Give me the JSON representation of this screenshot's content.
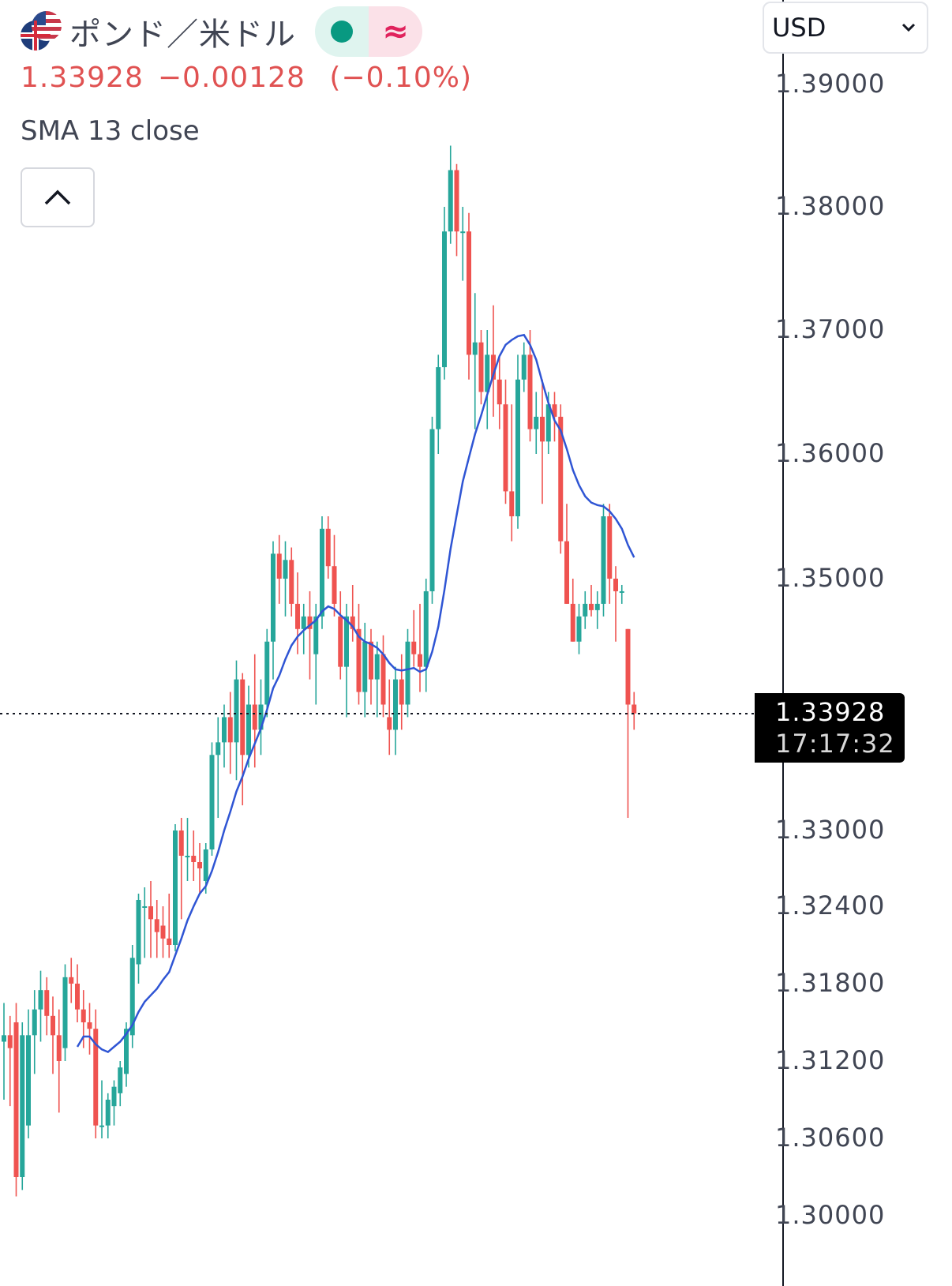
{
  "header": {
    "symbol_name": "ポンド／米ドル",
    "flag_icon": "gbp-usd-flags-icon",
    "status_icon": "market-open-dot-icon",
    "status_color": "#089981",
    "approx_icon": "approx-data-icon",
    "approx_symbol": "≈",
    "last_price": "1.33928",
    "change": "−0.00128",
    "change_pct": "(−0.10%)",
    "change_color": "#e05252"
  },
  "indicator": {
    "label": "SMA 13 close",
    "color": "#2f55d4"
  },
  "controls": {
    "collapse_icon": "chevron-up-icon",
    "currency": "USD",
    "currency_icon": "chevron-down-icon"
  },
  "price_tag": {
    "price": "1.33928",
    "time": "17:17:32"
  },
  "chart_data": {
    "type": "candlestick",
    "y_axis_side": "right",
    "y_tick_labels": [
      "1.39000",
      "1.38000",
      "1.37000",
      "1.36000",
      "1.35000",
      "1.33000",
      "1.32400",
      "1.31800",
      "1.31200",
      "1.30600",
      "1.30000"
    ],
    "y_tick_values": [
      1.39,
      1.38,
      1.37,
      1.36,
      1.35,
      1.33,
      1.324,
      1.318,
      1.312,
      1.306,
      1.3
    ],
    "colors": {
      "up": "#26a69a",
      "down": "#ef5350",
      "sma": "#2f55d4"
    },
    "last_price_value": 1.33928,
    "candles": [
      [
        1.3135,
        1.3165,
        1.309,
        1.314
      ],
      [
        1.314,
        1.3155,
        1.3085,
        1.313
      ],
      [
        1.315,
        1.3165,
        1.3015,
        1.303
      ],
      [
        1.303,
        1.315,
        1.302,
        1.314
      ],
      [
        1.307,
        1.316,
        1.306,
        1.314
      ],
      [
        1.314,
        1.3175,
        1.311,
        1.316
      ],
      [
        1.316,
        1.319,
        1.3135,
        1.3175
      ],
      [
        1.3175,
        1.3185,
        1.314,
        1.3155
      ],
      [
        1.3155,
        1.317,
        1.311,
        1.314
      ],
      [
        1.314,
        1.316,
        1.308,
        1.312
      ],
      [
        1.313,
        1.3195,
        1.312,
        1.3185
      ],
      [
        1.3185,
        1.32,
        1.3165,
        1.318
      ],
      [
        1.318,
        1.3195,
        1.315,
        1.316
      ],
      [
        1.316,
        1.3175,
        1.313,
        1.315
      ],
      [
        1.315,
        1.3165,
        1.3125,
        1.3145
      ],
      [
        1.3145,
        1.316,
        1.306,
        1.307
      ],
      [
        1.307,
        1.3105,
        1.306,
        1.307
      ],
      [
        1.307,
        1.3095,
        1.306,
        1.309
      ],
      [
        1.3085,
        1.3105,
        1.307,
        1.31
      ],
      [
        1.3095,
        1.312,
        1.3085,
        1.3115
      ],
      [
        1.311,
        1.315,
        1.31,
        1.3145
      ],
      [
        1.314,
        1.321,
        1.313,
        1.32
      ],
      [
        1.3195,
        1.325,
        1.318,
        1.3245
      ],
      [
        1.324,
        1.3255,
        1.32,
        1.324
      ],
      [
        1.324,
        1.326,
        1.32,
        1.323
      ],
      [
        1.323,
        1.3245,
        1.32,
        1.322
      ],
      [
        1.3225,
        1.324,
        1.32,
        1.3215
      ],
      [
        1.3215,
        1.325,
        1.32,
        1.321
      ],
      [
        1.321,
        1.3305,
        1.3205,
        1.33
      ],
      [
        1.33,
        1.331,
        1.323,
        1.328
      ],
      [
        1.328,
        1.331,
        1.326,
        1.328
      ],
      [
        1.328,
        1.33,
        1.326,
        1.3275
      ],
      [
        1.3275,
        1.329,
        1.325,
        1.327
      ],
      [
        1.326,
        1.329,
        1.325,
        1.3285
      ],
      [
        1.3285,
        1.337,
        1.328,
        1.336
      ],
      [
        1.336,
        1.339,
        1.331,
        1.337
      ],
      [
        1.337,
        1.34,
        1.335,
        1.339
      ],
      [
        1.339,
        1.341,
        1.3345,
        1.337
      ],
      [
        1.337,
        1.3435,
        1.334,
        1.342
      ],
      [
        1.342,
        1.3425,
        1.332,
        1.336
      ],
      [
        1.336,
        1.3415,
        1.335,
        1.34
      ],
      [
        1.34,
        1.344,
        1.335,
        1.338
      ],
      [
        1.338,
        1.342,
        1.336,
        1.34
      ],
      [
        1.34,
        1.346,
        1.339,
        1.345
      ],
      [
        1.345,
        1.353,
        1.342,
        1.352
      ],
      [
        1.352,
        1.3535,
        1.348,
        1.35
      ],
      [
        1.35,
        1.353,
        1.347,
        1.3515
      ],
      [
        1.3515,
        1.3525,
        1.347,
        1.348
      ],
      [
        1.348,
        1.3505,
        1.344,
        1.346
      ],
      [
        1.346,
        1.348,
        1.344,
        1.347
      ],
      [
        1.347,
        1.349,
        1.342,
        1.346
      ],
      [
        1.344,
        1.348,
        1.34,
        1.347
      ],
      [
        1.347,
        1.355,
        1.346,
        1.354
      ],
      [
        1.354,
        1.355,
        1.35,
        1.351
      ],
      [
        1.351,
        1.3535,
        1.347,
        1.348
      ],
      [
        1.347,
        1.349,
        1.342,
        1.343
      ],
      [
        1.343,
        1.348,
        1.339,
        1.347
      ],
      [
        1.347,
        1.3495,
        1.345,
        1.346
      ],
      [
        1.346,
        1.348,
        1.34,
        1.341
      ],
      [
        1.341,
        1.3465,
        1.339,
        1.345
      ],
      [
        1.345,
        1.346,
        1.34,
        1.342
      ],
      [
        1.342,
        1.345,
        1.339,
        1.344
      ],
      [
        1.344,
        1.3455,
        1.339,
        1.34
      ],
      [
        1.339,
        1.342,
        1.336,
        1.338
      ],
      [
        1.338,
        1.343,
        1.336,
        1.342
      ],
      [
        1.342,
        1.344,
        1.338,
        1.34
      ],
      [
        1.34,
        1.346,
        1.339,
        1.345
      ],
      [
        1.345,
        1.3475,
        1.343,
        1.344
      ],
      [
        1.344,
        1.348,
        1.341,
        1.343
      ],
      [
        1.343,
        1.35,
        1.341,
        1.349
      ],
      [
        1.349,
        1.363,
        1.348,
        1.362
      ],
      [
        1.362,
        1.368,
        1.36,
        1.367
      ],
      [
        1.367,
        1.38,
        1.366,
        1.378
      ],
      [
        1.378,
        1.385,
        1.377,
        1.383
      ],
      [
        1.383,
        1.3835,
        1.376,
        1.378
      ],
      [
        1.378,
        1.38,
        1.374,
        1.378
      ],
      [
        1.378,
        1.3795,
        1.366,
        1.368
      ],
      [
        1.368,
        1.373,
        1.362,
        1.369
      ],
      [
        1.369,
        1.37,
        1.364,
        1.365
      ],
      [
        1.365,
        1.37,
        1.362,
        1.368
      ],
      [
        1.368,
        1.372,
        1.363,
        1.366
      ],
      [
        1.366,
        1.368,
        1.362,
        1.364
      ],
      [
        1.364,
        1.366,
        1.356,
        1.357
      ],
      [
        1.357,
        1.364,
        1.353,
        1.355
      ],
      [
        1.355,
        1.368,
        1.354,
        1.366
      ],
      [
        1.366,
        1.369,
        1.365,
        1.368
      ],
      [
        1.368,
        1.37,
        1.361,
        1.362
      ],
      [
        1.362,
        1.365,
        1.36,
        1.363
      ],
      [
        1.363,
        1.366,
        1.356,
        1.361
      ],
      [
        1.361,
        1.365,
        1.36,
        1.364
      ],
      [
        1.364,
        1.365,
        1.361,
        1.363
      ],
      [
        1.363,
        1.364,
        1.352,
        1.353
      ],
      [
        1.353,
        1.356,
        1.348,
        1.348
      ],
      [
        1.348,
        1.35,
        1.345,
        1.345
      ],
      [
        1.345,
        1.348,
        1.344,
        1.347
      ],
      [
        1.347,
        1.349,
        1.346,
        1.348
      ],
      [
        1.348,
        1.3495,
        1.347,
        1.3475
      ],
      [
        1.3475,
        1.349,
        1.346,
        1.348
      ],
      [
        1.348,
        1.356,
        1.347,
        1.355
      ],
      [
        1.355,
        1.356,
        1.348,
        1.35
      ],
      [
        1.35,
        1.351,
        1.345,
        1.349
      ],
      [
        1.349,
        1.3495,
        1.348,
        1.349
      ],
      [
        1.346,
        1.346,
        1.331,
        1.34
      ],
      [
        1.34,
        1.341,
        1.338,
        1.3393
      ]
    ],
    "sma_13": [
      null,
      null,
      null,
      null,
      null,
      null,
      null,
      null,
      null,
      null,
      null,
      null,
      1.3131,
      1.3139,
      1.3139,
      1.3133,
      1.3129,
      1.3127,
      1.3131,
      1.3135,
      1.3141,
      1.3148,
      1.3158,
      1.3166,
      1.3171,
      1.3176,
      1.3183,
      1.3189,
      1.3202,
      1.3215,
      1.3229,
      1.324,
      1.325,
      1.3256,
      1.3268,
      1.3283,
      1.33,
      1.3315,
      1.3331,
      1.3343,
      1.3357,
      1.3369,
      1.3381,
      1.3396,
      1.3413,
      1.3423,
      1.3436,
      1.3447,
      1.3454,
      1.3459,
      1.3463,
      1.3467,
      1.3474,
      1.3478,
      1.3476,
      1.3471,
      1.3467,
      1.3462,
      1.3454,
      1.345,
      1.3448,
      1.3445,
      1.344,
      1.3433,
      1.3428,
      1.3427,
      1.3428,
      1.3429,
      1.3426,
      1.3428,
      1.3442,
      1.3462,
      1.3491,
      1.3524,
      1.3551,
      1.3578,
      1.3597,
      1.3616,
      1.3631,
      1.3648,
      1.3664,
      1.3679,
      1.3688,
      1.3692,
      1.3695,
      1.3696,
      1.3688,
      1.3676,
      1.3658,
      1.3641,
      1.3627,
      1.3619,
      1.3604,
      1.3587,
      1.3575,
      1.3566,
      1.3561,
      1.3559,
      1.3558,
      1.3554,
      1.3548,
      1.354,
      1.3527,
      1.3517
    ]
  }
}
